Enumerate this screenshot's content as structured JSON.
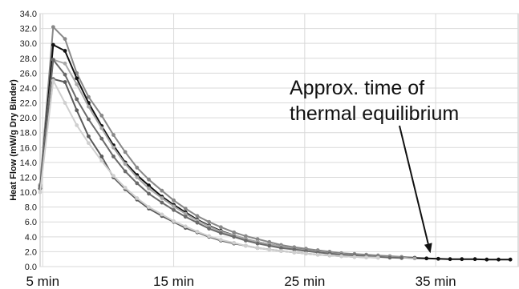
{
  "chart_data": {
    "type": "line",
    "title": "",
    "xlabel": "",
    "ylabel": "Heat Flow (mW/g Dry Binder)",
    "xlim": [
      4.8,
      41.3
    ],
    "ylim": [
      0,
      34
    ],
    "yticks": [
      0,
      2,
      4,
      6,
      8,
      10,
      12,
      14,
      16,
      18,
      20,
      22,
      24,
      26,
      28,
      30,
      32,
      34
    ],
    "ytick_labels": [
      "0.0",
      "2.0",
      "4.0",
      "6.0",
      "8.0",
      "10.0",
      "12.0",
      "14.0",
      "16.0",
      "18.0",
      "20.0",
      "22.0",
      "24.0",
      "26.0",
      "28.0",
      "30.0",
      "32.0",
      "34.0"
    ],
    "xticks": [
      5,
      15,
      25,
      35
    ],
    "xtick_labels": [
      "5 min",
      "15 min",
      "25 min",
      "35 min"
    ],
    "grid": true,
    "annotation": {
      "lines": [
        "Approx. time of",
        "thermal equilibrium"
      ],
      "points_to": [
        34.6,
        1.8
      ]
    },
    "series": [
      {
        "color": "#888888",
        "x": [
          4.8,
          5.8,
          6.7,
          7.6,
          8.5,
          9.5,
          10.4,
          11.3,
          12.2,
          13.1,
          14.1,
          15.0,
          15.9,
          16.8,
          17.7,
          18.6,
          19.6,
          20.5,
          21.4,
          22.3,
          23.2,
          24.2,
          25.1,
          26.0,
          26.9,
          27.8,
          28.8,
          29.7,
          30.6,
          31.5,
          32.4,
          33.4
        ],
        "y": [
          11.0,
          32.2,
          30.6,
          26.0,
          22.8,
          20.3,
          17.7,
          15.4,
          13.3,
          11.7,
          10.2,
          8.9,
          7.8,
          6.8,
          6.0,
          5.3,
          4.6,
          4.1,
          3.7,
          3.3,
          2.9,
          2.6,
          2.4,
          2.2,
          2.0,
          1.8,
          1.7,
          1.6,
          1.5,
          1.4,
          1.3,
          1.2
        ]
      },
      {
        "color": "#111111",
        "x": [
          4.8,
          5.8,
          6.7,
          7.6,
          8.5,
          9.5,
          10.4,
          11.3,
          12.2,
          13.1,
          14.1,
          15.0,
          15.9,
          16.8,
          17.7,
          18.6,
          19.6,
          20.5,
          21.4,
          22.3,
          23.2,
          24.2,
          25.1,
          26.0,
          26.9,
          27.8,
          28.8,
          29.7,
          30.6,
          31.5,
          32.4,
          33.4,
          34.3,
          35.2,
          36.1,
          37.0,
          38.0,
          38.9,
          39.8,
          40.7
        ],
        "y": [
          10.5,
          29.8,
          29.0,
          25.3,
          22.0,
          18.9,
          16.3,
          14.0,
          12.3,
          10.9,
          9.4,
          8.3,
          7.3,
          6.3,
          5.5,
          4.8,
          4.2,
          3.7,
          3.3,
          3.0,
          2.7,
          2.4,
          2.2,
          2.0,
          1.8,
          1.7,
          1.55,
          1.45,
          1.35,
          1.3,
          1.2,
          1.15,
          1.1,
          1.05,
          1.0,
          1.0,
          1.0,
          0.95,
          0.95,
          0.95
        ]
      },
      {
        "color": "#a8a8a8",
        "x": [
          4.8,
          5.8,
          6.7,
          7.6,
          8.5,
          9.5,
          10.4,
          11.3,
          12.2,
          13.1,
          14.1,
          15.0,
          15.9,
          16.8,
          17.7,
          18.6,
          19.6,
          20.5,
          21.4,
          22.3,
          23.2,
          24.2,
          25.1,
          26.0,
          26.9,
          27.8,
          28.8,
          29.7,
          30.6,
          31.5,
          32.4,
          33.4
        ],
        "y": [
          11.0,
          27.8,
          27.3,
          24.5,
          21.5,
          18.6,
          16.0,
          13.8,
          12.0,
          10.5,
          9.2,
          8.1,
          7.1,
          6.2,
          5.4,
          4.7,
          4.2,
          3.7,
          3.3,
          3.0,
          2.7,
          2.4,
          2.2,
          2.0,
          1.8,
          1.7,
          1.55,
          1.45,
          1.35,
          1.3,
          1.2,
          1.1
        ]
      },
      {
        "color": "#6a6a6a",
        "x": [
          4.8,
          5.8,
          6.7,
          7.6,
          8.5,
          9.5,
          10.4,
          11.3,
          12.2,
          13.1,
          14.1,
          15.0,
          15.9,
          16.8,
          17.7,
          18.6,
          19.6,
          20.5,
          21.4,
          22.3,
          23.2,
          24.2,
          25.1,
          26.0,
          26.9,
          27.8,
          28.8,
          29.7,
          30.6,
          31.5,
          32.4
        ],
        "y": [
          10.8,
          27.8,
          25.8,
          22.5,
          19.8,
          17.2,
          14.8,
          12.8,
          11.2,
          9.8,
          8.6,
          7.6,
          6.7,
          5.9,
          5.1,
          4.5,
          4.0,
          3.5,
          3.1,
          2.8,
          2.5,
          2.3,
          2.1,
          1.9,
          1.75,
          1.6,
          1.5,
          1.4,
          1.3,
          1.2,
          1.15
        ]
      },
      {
        "color": "#5a5a5a",
        "x": [
          4.8,
          5.8,
          6.7,
          7.6,
          8.5,
          9.5,
          10.4,
          11.3,
          12.2,
          13.1,
          14.1,
          15.0,
          15.9,
          16.8,
          17.7,
          18.6,
          19.6,
          20.5,
          21.4,
          22.3,
          23.2,
          24.2,
          25.1,
          26.0,
          26.9,
          27.8,
          28.8,
          29.7,
          30.6
        ],
        "y": [
          10.5,
          25.2,
          24.8,
          21.0,
          17.5,
          14.8,
          12.0,
          10.4,
          9.0,
          7.8,
          6.8,
          6.0,
          5.2,
          4.6,
          4.0,
          3.5,
          3.1,
          2.8,
          2.5,
          2.3,
          2.1,
          1.9,
          1.75,
          1.6,
          1.5,
          1.4,
          1.3,
          1.25,
          1.2
        ]
      },
      {
        "color": "#cfcfcf",
        "x": [
          4.8,
          5.8,
          6.7,
          7.6,
          8.5,
          9.5,
          10.4,
          11.3,
          12.2,
          13.1,
          14.1,
          15.0,
          15.9,
          16.8,
          17.7,
          18.6,
          19.6,
          20.5,
          21.4,
          22.3,
          23.2,
          24.2,
          25.1,
          26.0,
          26.9,
          27.8,
          28.8,
          29.7,
          30.6
        ],
        "y": [
          10.0,
          25.0,
          22.0,
          19.0,
          16.6,
          14.2,
          12.2,
          10.6,
          9.2,
          8.0,
          7.0,
          6.1,
          5.4,
          4.7,
          4.1,
          3.6,
          3.2,
          2.8,
          2.5,
          2.3,
          2.1,
          1.9,
          1.75,
          1.6,
          1.5,
          1.4,
          1.3,
          1.25,
          1.2
        ]
      }
    ]
  }
}
